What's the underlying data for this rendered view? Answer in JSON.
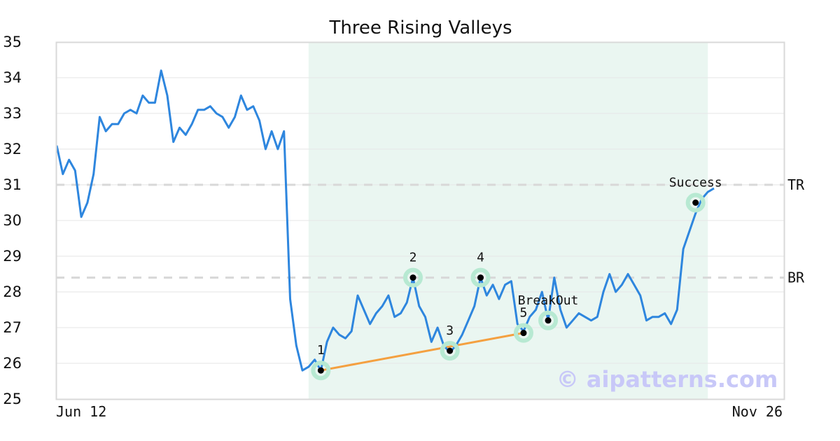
{
  "chart_data": {
    "type": "line",
    "title": "Three Rising Valleys",
    "ylim": [
      25,
      35
    ],
    "yticks": [
      "25",
      "26",
      "27",
      "28",
      "29",
      "30",
      "31",
      "32",
      "33",
      "34",
      "35"
    ],
    "x_tick_labels": [
      "Jun 12",
      "Nov 26"
    ],
    "grid": "horizontal",
    "series": [
      {
        "color": "#2e86de",
        "values": [
          32.1,
          31.3,
          31.7,
          31.4,
          30.1,
          30.5,
          31.3,
          32.9,
          32.5,
          32.7,
          32.7,
          33.0,
          33.1,
          33.0,
          33.5,
          33.3,
          33.3,
          34.2,
          33.5,
          32.2,
          32.6,
          32.4,
          32.7,
          33.1,
          33.1,
          33.2,
          33.0,
          32.9,
          32.6,
          32.9,
          33.5,
          33.1,
          33.2,
          32.8,
          32.0,
          32.5,
          32.0,
          32.5,
          27.8,
          26.5,
          25.8,
          25.9,
          26.1,
          25.8,
          26.6,
          27.0,
          26.8,
          26.7,
          26.9,
          27.9,
          27.5,
          27.1,
          27.4,
          27.6,
          27.9,
          27.3,
          27.4,
          27.7,
          28.4,
          27.6,
          27.3,
          26.6,
          27.0,
          26.5,
          26.3,
          26.5,
          26.8,
          27.2,
          27.6,
          28.4,
          27.9,
          28.2,
          27.8,
          28.2,
          28.3,
          27.1,
          26.9,
          27.3,
          27.5,
          28.0,
          27.2,
          28.4,
          27.5,
          27.0,
          27.2,
          27.4,
          27.3,
          27.2,
          27.3,
          28.0,
          28.5,
          28.0,
          28.2,
          28.5,
          28.2,
          27.9,
          27.2,
          27.3,
          27.3,
          27.4,
          27.1,
          27.5,
          29.2,
          29.7,
          30.2,
          30.6,
          30.8,
          30.9
        ]
      }
    ],
    "highlight_region": {
      "start_index": 41,
      "end_index": 106,
      "color": "#eaf6f1"
    },
    "reference_lines": [
      {
        "label": "TR",
        "value": 31.0
      },
      {
        "label": "BR",
        "value": 28.4
      }
    ],
    "points": [
      {
        "label": "1",
        "index": 43,
        "value": 25.8
      },
      {
        "label": "2",
        "index": 58,
        "value": 28.4
      },
      {
        "label": "3",
        "index": 64,
        "value": 26.35
      },
      {
        "label": "4",
        "index": 69,
        "value": 28.4
      },
      {
        "label": "5",
        "index": 76,
        "value": 26.85
      },
      {
        "label": "BreakOut",
        "index": 80,
        "value": 27.2
      },
      {
        "label": "Success",
        "index": 104,
        "value": 30.5
      }
    ],
    "trendline": {
      "from_point": 0,
      "to_point": 4,
      "color": "#f4a040"
    },
    "marker_ring_color": "#b7e9d2",
    "watermark": "© aipatterns.com"
  }
}
